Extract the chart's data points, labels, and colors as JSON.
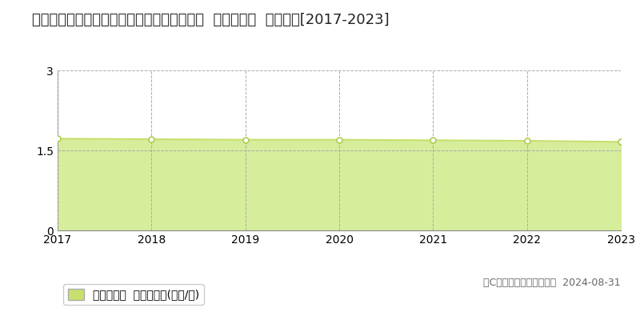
{
  "title": "鳥取県西伯郡伯耆町大原字ウトロ５７９番１  基準地価格  地価推移[2017-2023]",
  "years": [
    2017,
    2018,
    2019,
    2020,
    2021,
    2022,
    2023
  ],
  "values": [
    1.72,
    1.71,
    1.7,
    1.7,
    1.69,
    1.68,
    1.66
  ],
  "line_color": "#c8e06e",
  "fill_color": "#d6ed9b",
  "marker_color": "#ffffff",
  "marker_edge_color": "#b0cc50",
  "ylim": [
    0,
    3
  ],
  "yticks": [
    0,
    1.5,
    3
  ],
  "grid_color": "#aaaaaa",
  "background_color": "#ffffff",
  "legend_label": "基準地価格  平均坪単価(万円/坪)",
  "legend_square_color": "#c8e06e",
  "copyright_text": "（C）土地価格ドットコム  2024-08-31",
  "title_fontsize": 13,
  "tick_fontsize": 10,
  "legend_fontsize": 10,
  "copyright_fontsize": 9
}
